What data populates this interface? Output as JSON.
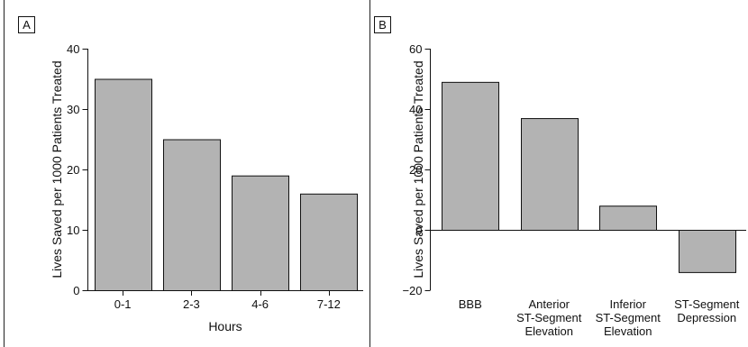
{
  "chart_data": [
    {
      "panel_label": "A",
      "type": "bar",
      "categories": [
        "0-1",
        "2-3",
        "4-6",
        "7-12"
      ],
      "values": [
        35,
        25,
        19,
        16
      ],
      "title": "",
      "xlabel": "Hours",
      "ylabel": "Lives Saved per 1000 Patients Treated",
      "ylim": [
        0,
        40
      ],
      "yticks": [
        0,
        10,
        20,
        30,
        40
      ],
      "bar_color": "#b3b3b3",
      "grid": false
    },
    {
      "panel_label": "B",
      "type": "bar",
      "categories": [
        [
          "BBB"
        ],
        [
          "Anterior",
          "ST-Segment",
          "Elevation"
        ],
        [
          "Inferior",
          "ST-Segment",
          "Elevation"
        ],
        [
          "ST-Segment",
          "Depression"
        ]
      ],
      "values": [
        49,
        37,
        8,
        -14
      ],
      "title": "",
      "xlabel": "",
      "ylabel": "Lives Saved per 1000 Patients Treated",
      "ylim": [
        -20,
        60
      ],
      "yticks": [
        -20,
        0,
        20,
        40,
        60
      ],
      "bar_color": "#b3b3b3",
      "grid": false
    }
  ]
}
